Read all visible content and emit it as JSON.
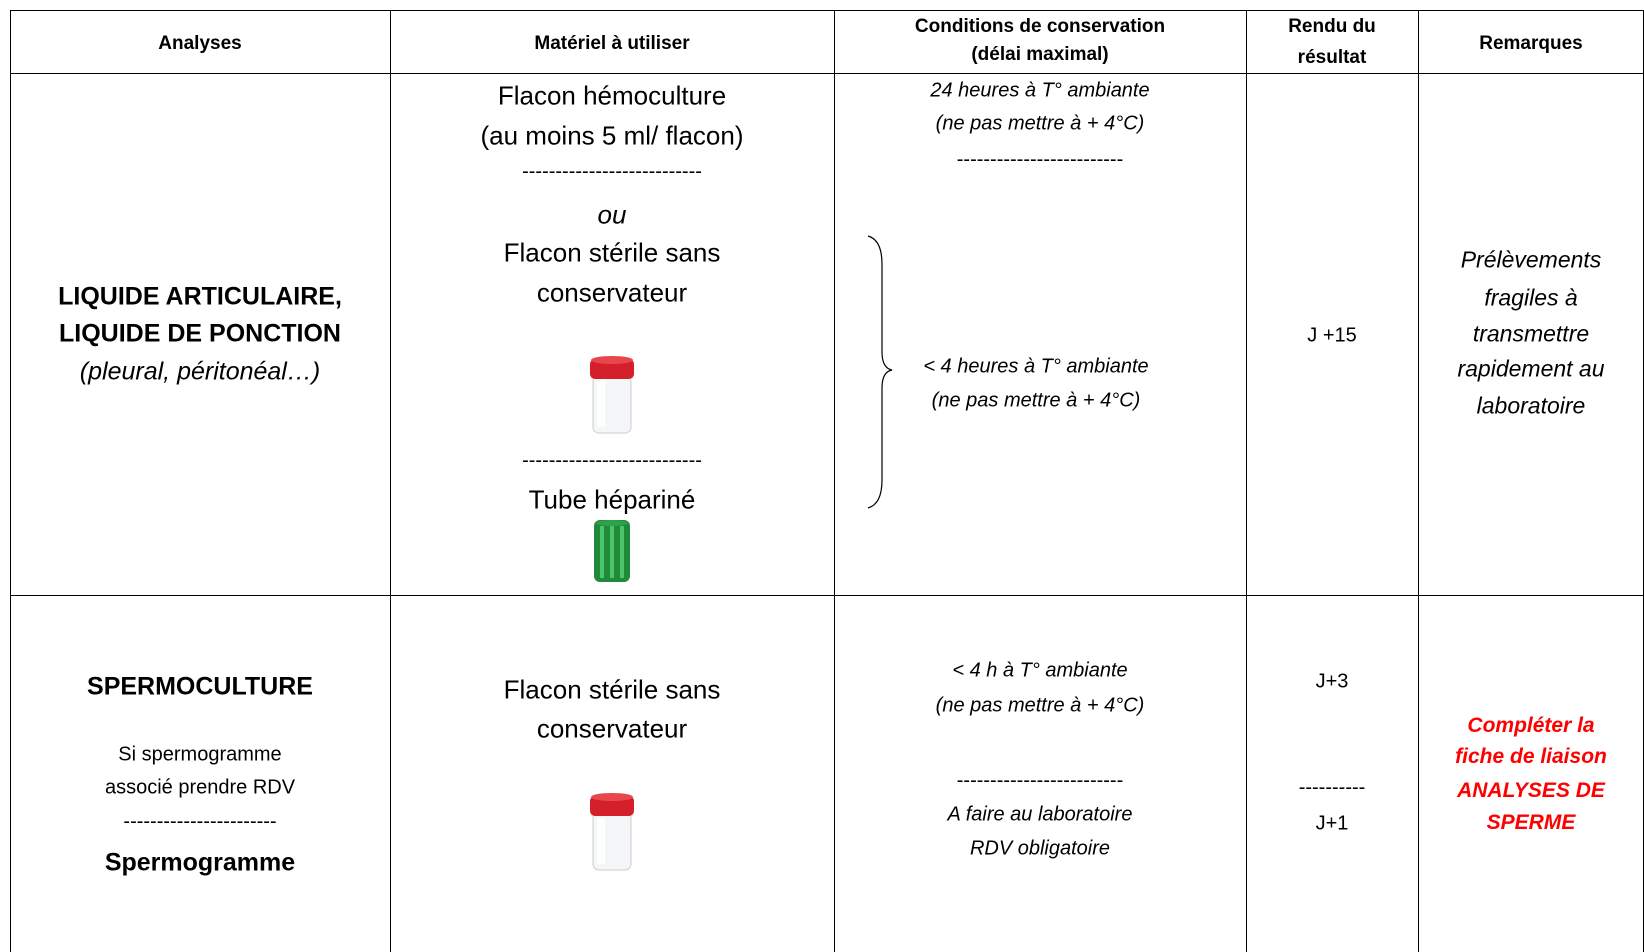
{
  "table": {
    "header": [
      [
        "Analyses"
      ],
      [
        "Matériel à utiliser"
      ],
      [
        "Conditions de conservation",
        "(délai maximal)"
      ],
      [
        "Rendu du",
        "résultat"
      ],
      [
        "Remarques"
      ]
    ],
    "rows": [
      {
        "analyses": {
          "lines": [
            "LIQUIDE ARTICULAIRE,",
            "LIQUIDE DE PONCTION"
          ],
          "note": "(pleural, péritonéal…)"
        },
        "materiel": [
          "Flacon hémoculture",
          "(au moins 5 ml/ flacon)",
          "---------------------------",
          "ou",
          "Flacon stérile sans",
          "conservateur",
          "---------------------------",
          "Tube hépariné"
        ],
        "conditions": [
          "24 heures à T° ambiante",
          "(ne pas mettre à + 4°C)",
          "-------------------------",
          "< 4 heures à T° ambiante",
          "(ne pas mettre à + 4°C)"
        ],
        "rendu": [
          "J +15"
        ],
        "remarques": [
          "Prélèvements",
          "fragiles à",
          "transmettre",
          "rapidement au",
          "laboratoire"
        ]
      },
      {
        "analyses": {
          "lines": [
            "SPERMOCULTURE"
          ],
          "note_lines": [
            "Si spermogramme",
            "associé prendre RDV",
            "-----------------------"
          ],
          "second": "Spermogramme"
        },
        "materiel": [
          "Flacon stérile sans",
          "conservateur"
        ],
        "conditions": [
          "< 4  h  à T° ambiante",
          "(ne pas mettre à + 4°C)",
          "-------------------------",
          "A faire au laboratoire",
          "RDV obligatoire"
        ],
        "rendu": [
          "J+3",
          "----------",
          "J+1"
        ],
        "remarques": [
          "Compléter la",
          "fiche de liaison",
          "ANALYSES DE",
          "SPERME"
        ]
      }
    ]
  }
}
